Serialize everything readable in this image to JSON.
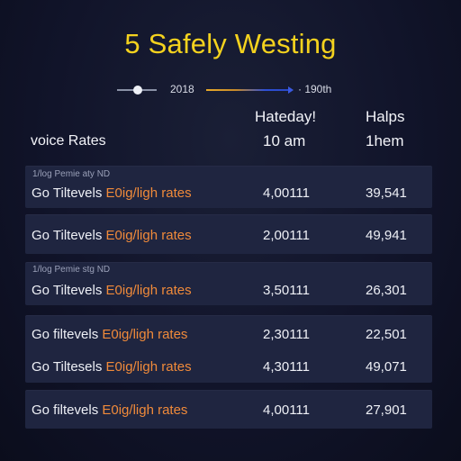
{
  "title": "5 Safely Westing",
  "timeline": {
    "start_label": "2018",
    "end_label": "· 190th"
  },
  "columns": {
    "col1": {
      "line1": "Hateday!",
      "line2": "10 am"
    },
    "col2": {
      "line1": "Halps",
      "line2": "1hem"
    }
  },
  "row_header": "voice Rates",
  "cards": [
    {
      "note": "1/log Pemie aty ND",
      "rows": [
        {
          "label_a": "Go Tiltevels ",
          "label_b": "E0ig/ligh rates",
          "v1": "4,00111",
          "v2": "39,541"
        }
      ]
    },
    {
      "note": "",
      "rows": [
        {
          "label_a": "Go Tiltevels ",
          "label_b": "E0ig/ligh rates",
          "v1": "2,00111",
          "v2": "49,941"
        }
      ]
    },
    {
      "note": "1/log Pemie stg ND",
      "rows": [
        {
          "label_a": "Go Tiltevels ",
          "label_b": "E0ig/ligh rates",
          "v1": "3,50111",
          "v2": "26,301"
        }
      ]
    },
    {
      "note": "",
      "rows": [
        {
          "label_a": "Go filtevels ",
          "label_b": "E0ig/ligh rates",
          "v1": "2,30111",
          "v2": "22,501"
        },
        {
          "label_a": "Go Tiltesels ",
          "label_b": "E0ig/ligh rates",
          "v1": "4,30111",
          "v2": "49,071"
        }
      ]
    },
    {
      "note": "",
      "rows": [
        {
          "label_a": "Go filtevels ",
          "label_b": "E0ig/ligh rates",
          "v1": "4,00111",
          "v2": "27,901"
        }
      ]
    }
  ],
  "colors": {
    "title": "#f4d21e",
    "accent_orange": "#f08a3a",
    "card_bg": "#1f2540",
    "background": "#11142a",
    "timeline_blue": "#2d4fd6"
  }
}
